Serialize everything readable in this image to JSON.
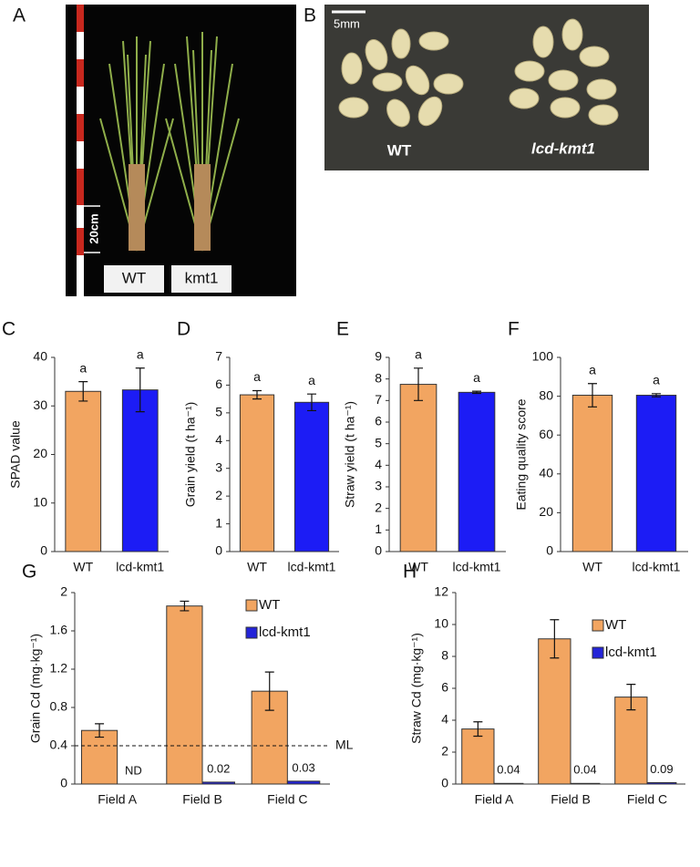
{
  "photos": [
    {
      "panel": "A",
      "labels": [
        "WT",
        "kmt1"
      ],
      "scale": "20cm"
    },
    {
      "panel": "B",
      "labels": [
        "WT",
        "lcd-kmt1"
      ],
      "scale": "5mm"
    }
  ],
  "chart_data": [
    {
      "type": "bar",
      "panel": "C",
      "y_label": "SPAD value",
      "categories": [
        "WT",
        "lcd-kmt1"
      ],
      "values": [
        33,
        33.3
      ],
      "errors": [
        2,
        4.5
      ],
      "letters": [
        "a",
        "a"
      ],
      "colors": [
        "#f2a561",
        "#1c1cf5"
      ],
      "ylim": [
        0,
        40
      ],
      "yticks": [
        0,
        10,
        20,
        30,
        40
      ]
    },
    {
      "type": "bar",
      "panel": "D",
      "y_label": "Grain yield (t ha⁻¹)",
      "categories": [
        "WT",
        "lcd-kmt1"
      ],
      "values": [
        5.65,
        5.38
      ],
      "errors": [
        0.15,
        0.3
      ],
      "letters": [
        "a",
        "a"
      ],
      "colors": [
        "#f2a561",
        "#1c1cf5"
      ],
      "ylim": [
        0,
        7
      ],
      "yticks": [
        0,
        1,
        2,
        3,
        4,
        5,
        6,
        7
      ]
    },
    {
      "type": "bar",
      "panel": "E",
      "y_label": "Straw yield (t ha⁻¹)",
      "categories": [
        "WT",
        "lcd-kmt1"
      ],
      "values": [
        7.75,
        7.38
      ],
      "errors": [
        0.75,
        0.05
      ],
      "letters": [
        "a",
        "a"
      ],
      "colors": [
        "#f2a561",
        "#1c1cf5"
      ],
      "ylim": [
        0,
        9
      ],
      "yticks": [
        0,
        1,
        2,
        3,
        4,
        5,
        6,
        7,
        8,
        9
      ]
    },
    {
      "type": "bar",
      "panel": "F",
      "y_label": "Eating quality score",
      "categories": [
        "WT",
        "lcd-kmt1"
      ],
      "values": [
        80.5,
        80.5
      ],
      "errors": [
        6,
        0.8
      ],
      "letters": [
        "a",
        "a"
      ],
      "colors": [
        "#f2a561",
        "#1c1cf5"
      ],
      "ylim": [
        0,
        100
      ],
      "yticks": [
        0,
        20,
        40,
        60,
        80,
        100
      ]
    },
    {
      "type": "grouped-bar",
      "panel": "G",
      "y_label": "Grain Cd (mg·kg⁻¹)",
      "categories": [
        "Field A",
        "Field B",
        "Field C"
      ],
      "series": [
        {
          "name": "WT",
          "color": "#f2a561",
          "values": [
            0.56,
            1.86,
            0.97
          ],
          "errors": [
            0.07,
            0.05,
            0.2
          ]
        },
        {
          "name": "lcd-kmt1",
          "color": "#2424d8",
          "values": [
            null,
            0.02,
            0.03
          ],
          "value_labels": [
            "ND",
            "0.02",
            "0.03"
          ]
        }
      ],
      "reference_line": {
        "value": 0.4,
        "label": "ML"
      },
      "legend": "upper right",
      "ylim": [
        0,
        2
      ],
      "yticks": [
        0,
        0.4,
        0.8,
        1.2,
        1.6,
        2
      ]
    },
    {
      "type": "grouped-bar",
      "panel": "H",
      "y_label": "Straw Cd (mg·kg⁻¹)",
      "categories": [
        "Field A",
        "Field B",
        "Field C"
      ],
      "series": [
        {
          "name": "WT",
          "color": "#f2a561",
          "values": [
            3.45,
            9.1,
            5.45
          ],
          "errors": [
            0.45,
            1.2,
            0.8
          ]
        },
        {
          "name": "lcd-kmt1",
          "color": "#2424d8",
          "values": [
            0.04,
            0.04,
            0.09
          ]
        }
      ],
      "legend": "upper right",
      "ylim": [
        0,
        12
      ],
      "yticks": [
        0,
        2,
        4,
        6,
        8,
        10,
        12
      ]
    }
  ]
}
